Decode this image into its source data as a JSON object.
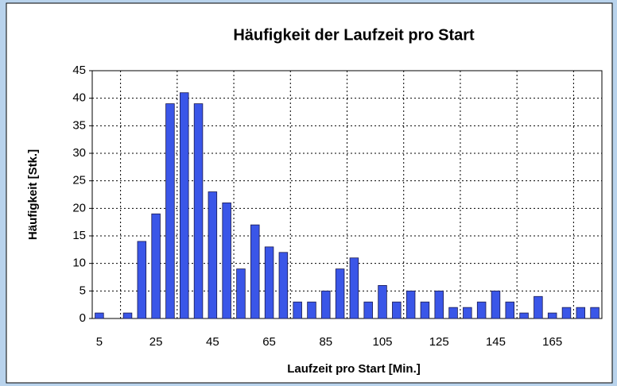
{
  "chart_data": {
    "type": "bar",
    "title": "Häufigkeit der Laufzeit pro Start",
    "x_label": "Laufzeit pro Start [Min.]",
    "y_label": "Häufigkeit [Stk.]",
    "categories": [
      "5",
      null,
      null,
      null,
      "25",
      null,
      null,
      null,
      "45",
      null,
      null,
      null,
      "65",
      null,
      null,
      null,
      "85",
      null,
      null,
      null,
      "105",
      null,
      null,
      null,
      "125",
      null,
      null,
      null,
      "145",
      null,
      null,
      null,
      "165",
      null,
      null,
      null
    ],
    "values": [
      1,
      0,
      1,
      14,
      19,
      39,
      41,
      39,
      23,
      21,
      9,
      17,
      13,
      12,
      3,
      3,
      5,
      9,
      11,
      3,
      6,
      3,
      5,
      3,
      5,
      2,
      2,
      3,
      5,
      3,
      1,
      4,
      1,
      2,
      2,
      2
    ],
    "color": "#3a56e8",
    "ylim": [
      0,
      45
    ],
    "yticks": [
      0,
      5,
      10,
      15,
      20,
      25,
      30,
      35,
      40,
      45
    ],
    "grid": true
  }
}
